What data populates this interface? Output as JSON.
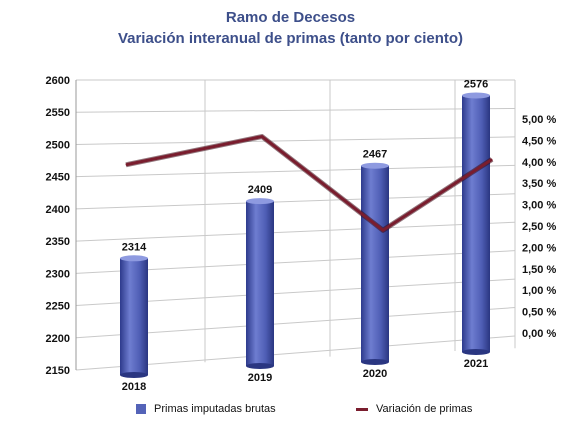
{
  "chart_data": {
    "type": "bar+line",
    "title": "Ramo de Decesos",
    "subtitle": "Variación interanual de primas (tanto por ciento)",
    "categories": [
      "2018",
      "2019",
      "2020",
      "2021"
    ],
    "series": [
      {
        "name": "Primas imputadas brutas",
        "type": "bar",
        "axis": "left",
        "values": [
          2314,
          2409,
          2467,
          2576
        ],
        "data_labels": [
          "2314",
          "2409",
          "2467",
          "2576"
        ]
      },
      {
        "name": "Variación de primas",
        "type": "line",
        "axis": "right",
        "values": [
          4.0,
          4.45,
          2.4,
          4.5
        ]
      }
    ],
    "y_left": {
      "min": 2150,
      "max": 2600,
      "ticks": [
        "2150",
        "2200",
        "2250",
        "2300",
        "2350",
        "2400",
        "2450",
        "2500",
        "2550",
        "2600"
      ]
    },
    "y_right": {
      "min": 0,
      "max": 5,
      "ticks": [
        "0,00 %",
        "0,50 %",
        "1,00 %",
        "1,50 %",
        "2,00 %",
        "2,50 %",
        "3,00 %",
        "3,50 %",
        "4,00 %",
        "4,50 %",
        "5,00 %"
      ]
    },
    "grid": true,
    "legend_position": "bottom",
    "colors": {
      "bar": "#5463b8",
      "bar_dark": "#2d3a8c",
      "line": "#7a1d2e",
      "title": "#3d4f8a"
    }
  }
}
